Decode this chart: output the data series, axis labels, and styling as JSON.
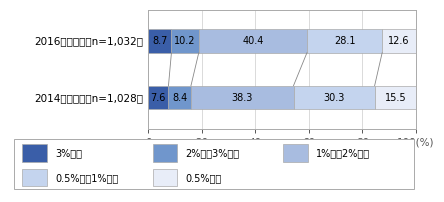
{
  "rows": [
    {
      "label": "2016年度調査（n=1,032）",
      "values": [
        8.7,
        10.2,
        40.4,
        28.1,
        12.6
      ]
    },
    {
      "label": "2014年度調査（n=1,028）",
      "values": [
        7.6,
        8.4,
        38.3,
        30.3,
        15.5
      ]
    }
  ],
  "colors": [
    "#3a5ea8",
    "#7096cc",
    "#a8bce0",
    "#c4d4ee",
    "#e8edf8"
  ],
  "legend_labels": [
    "3%以上",
    "2%以上3%未満",
    "1%以上2%未満",
    "0.5%以上1%未満",
    "0.5%未満"
  ],
  "xlim": [
    0,
    100
  ],
  "xticks": [
    0,
    20,
    40,
    60,
    80,
    100
  ],
  "bar_height": 0.42,
  "label_fontsize": 7.5,
  "value_fontsize": 7.0,
  "legend_fontsize": 7.0,
  "background_color": "#ffffff",
  "edge_color": "#aaaaaa",
  "bar_gap": 0.85
}
